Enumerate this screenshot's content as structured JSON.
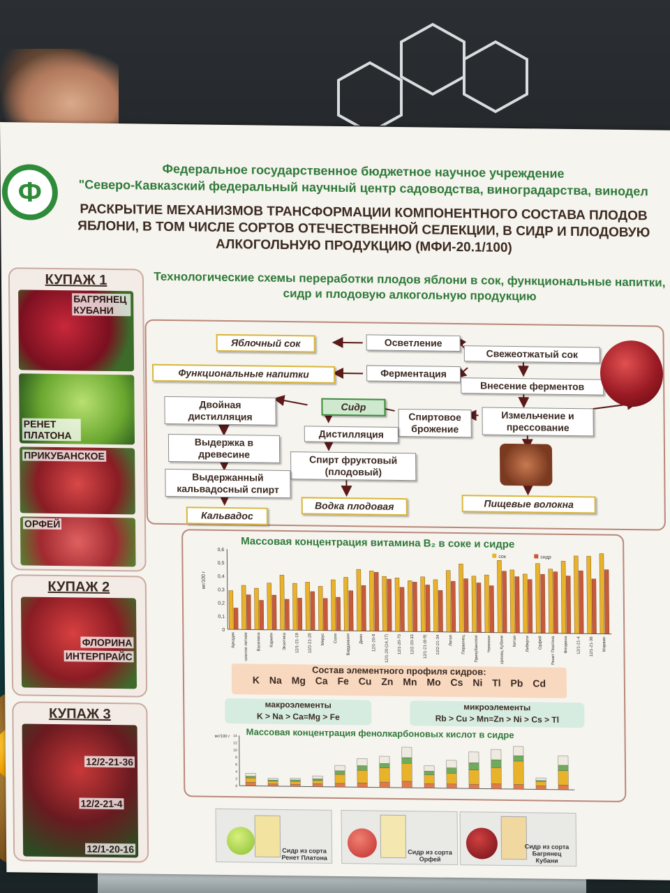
{
  "header": {
    "org_line1": "Федеральное государственное бюджетное научное учреждение",
    "org_line2": "\"Северо-Кавказский федеральный научный центр садоводства, виноградарства, винодел",
    "title": "РАСКРЫТИЕ МЕХАНИЗМОВ ТРАНСФОРМАЦИИ КОМПОНЕНТНОГО СОСТАВА ПЛОДОВ ЯБЛОНИ, В ТОМ ЧИСЛЕ СОРТОВ ОТЕЧЕСТВЕННОЙ СЕЛЕКЦИИ, В СИДР И ПЛОДОВУЮ АЛКОГОЛЬНУЮ ПРОДУКЦИЮ (МФИ-20.1/100)",
    "subtitle": "Технологические схемы переработки плодов яблони в сок, функциональные напитки, сидр и плодовую алкогольную продукцию"
  },
  "kupazh": [
    {
      "title": "КУПАЖ 1",
      "varieties": [
        "БАГРЯНЕЦ КУБАНИ",
        "РЕНЕТ ПЛАТОНА",
        "ПРИКУБАНСКОЕ",
        "ОРФЕЙ"
      ]
    },
    {
      "title": "КУПАЖ 2",
      "varieties": [
        "ФЛОРИНА",
        "ИНТЕРПРАЙС"
      ]
    },
    {
      "title": "КУПАЖ 3",
      "varieties": [
        "12/2-21-36",
        "12/2-21-4",
        "12/1-20-16"
      ]
    }
  ],
  "flow": {
    "juice": "Яблочный сок",
    "clarify": "Осветление",
    "fresh": "Свежеотжатый сок",
    "functional": "Функциональные напитки",
    "ferment": "Ферментация",
    "enzymes": "Внесение ферментов",
    "cider": "Сидр",
    "double": "Двойная дистилляция",
    "spirit_ferm": "Спиртовое брожение",
    "crush": "Измельчение и прессование",
    "distill": "Дистилляция",
    "aging": "Выдержка в древесине",
    "fruit_spirit": "Спирт фруктовый (плодовый)",
    "aged_spirit": "Выдержанный кальвадосный спирт",
    "vodka": "Водка плодовая",
    "fiber": "Пищевые волокна",
    "calvados": "Кальвадос"
  },
  "chart_data": [
    {
      "type": "bar",
      "title": "Массовая концентрация витамина B₂ в соке и сидре",
      "ylabel": "мг/100 г",
      "ylim": [
        0,
        0.6
      ],
      "yticks": [
        "0",
        "0,05",
        "0,1",
        "0,15",
        "0,2",
        "0,25",
        "0,3",
        "0,35",
        "0,4",
        "0,45",
        "0,5",
        "0,55",
        "0,6"
      ],
      "categories": [
        "Аркадик",
        "Золотое летнее",
        "Василиса",
        "Кармен",
        "Экзотика",
        "12/1-21-19",
        "12/2-21-28",
        "Мирус",
        "Соло",
        "Вирджиния",
        "Джин",
        "12/1-20-8",
        "12/1-20-(14,17)",
        "12/1-20-70",
        "12/2-20-33",
        "12/1-21-(6-9)",
        "12/2-21-34",
        "Лигол",
        "Первенец",
        "Прикубанское",
        "Чемпион",
        "Багрянец Кубани",
        "Китая",
        "Либерти",
        "Орфей",
        "Ренет Платона",
        "Флорина",
        "12/1-21-4",
        "12/1-21-36",
        "Марвин"
      ],
      "series": [
        {
          "name": "сок",
          "color": "#e8b32a",
          "values": [
            0.29,
            0.33,
            0.31,
            0.35,
            0.41,
            0.35,
            0.36,
            0.33,
            0.38,
            0.4,
            0.46,
            0.45,
            0.41,
            0.4,
            0.38,
            0.41,
            0.39,
            0.46,
            0.51,
            0.42,
            0.43,
            0.54,
            0.47,
            0.44,
            0.52,
            0.48,
            0.54,
            0.58,
            0.58,
            0.6
          ]
        },
        {
          "name": "сидр",
          "color": "#c65a3a",
          "values": [
            0.16,
            0.26,
            0.22,
            0.26,
            0.23,
            0.24,
            0.29,
            0.24,
            0.25,
            0.3,
            0.34,
            0.44,
            0.39,
            0.33,
            0.37,
            0.35,
            0.31,
            0.38,
            0.4,
            0.37,
            0.35,
            0.46,
            0.42,
            0.4,
            0.44,
            0.46,
            0.43,
            0.47,
            0.41,
            0.48
          ]
        }
      ]
    },
    {
      "type": "bar",
      "title": "Массовая концентрация фенолкарбоновых кислот в сидре",
      "ylabel": "мг/100 г",
      "ylim": [
        0,
        14
      ],
      "yticks": [
        "0",
        "2",
        "4",
        "6",
        "8",
        "10",
        "12",
        "14"
      ],
      "stacked": true,
      "categories": [
        "c1",
        "c2",
        "c3",
        "c4",
        "c5",
        "c6",
        "c7",
        "c8",
        "c9",
        "c10",
        "c11",
        "c12",
        "c13",
        "c14",
        "c15"
      ],
      "series": [
        {
          "name": "s1",
          "color": "#e07a4a",
          "values": [
            1.0,
            0.6,
            0.6,
            0.8,
            1.0,
            1.2,
            1.5,
            1.8,
            1.2,
            1.2,
            1.2,
            1.4,
            1.3,
            1.0,
            1.3
          ]
        },
        {
          "name": "s2",
          "color": "#e8b32a",
          "values": [
            1.2,
            0.8,
            0.8,
            0.9,
            2.5,
            3.5,
            4.0,
            5.0,
            2.5,
            3.0,
            4.0,
            4.5,
            6.5,
            1.2,
            4.0
          ]
        },
        {
          "name": "s3",
          "color": "#6fab5a",
          "values": [
            0.5,
            0.3,
            0.4,
            0.5,
            1.0,
            1.3,
            1.2,
            1.6,
            1.0,
            1.5,
            2.0,
            2.2,
            1.5,
            0.3,
            1.5
          ]
        },
        {
          "name": "s4",
          "color": "#eeeae0",
          "values": [
            0.8,
            0.5,
            0.5,
            0.8,
            1.5,
            2.0,
            2.0,
            2.9,
            1.5,
            2.1,
            3.0,
            2.9,
            2.6,
            0.7,
            2.6
          ]
        }
      ]
    }
  ],
  "profile": {
    "header": "Состав элементного профиля сидров:",
    "elements": "K Na Mg Ca Fe Cu Zn Mn Mo Cs Ni Tl Pb Cd",
    "macro_title": "макроэлементы",
    "macro": "K > Na > Ca=Mg > Fe",
    "micro_title": "микроэлементы",
    "micro": "Rb > Cu > Mn=Zn > Ni > Cs > Tl"
  },
  "ciders": [
    {
      "label": "Сидр из сорта Ренет Платона"
    },
    {
      "label": "Сидр из сорта Орфей"
    },
    {
      "label": "Сидр из сорта Багрянец Кубани"
    }
  ],
  "colors": {
    "green": "#2f7a3a",
    "brown": "#3b2a22",
    "juice": "#e8b32a",
    "cider": "#c65a3a"
  }
}
